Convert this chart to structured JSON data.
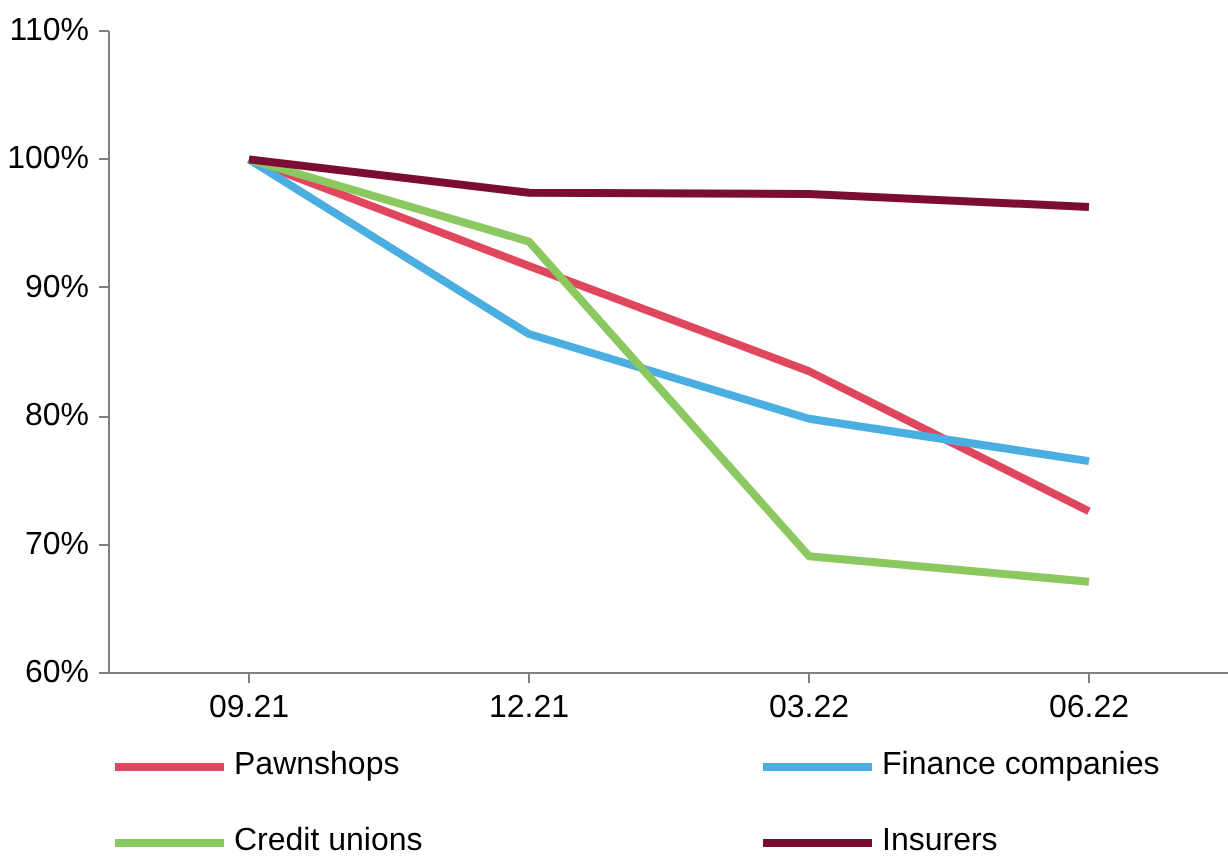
{
  "chart_data": {
    "type": "line",
    "categories": [
      "09.21",
      "12.21",
      "03.22",
      "06.22"
    ],
    "series": [
      {
        "name": "Pawnshops",
        "color": "#e0475e",
        "values": [
          100,
          91.7,
          83.5,
          72.6
        ]
      },
      {
        "name": "Finance companies",
        "color": "#4aaee0",
        "values": [
          100,
          86.4,
          79.8,
          76.5
        ]
      },
      {
        "name": "Credit unions",
        "color": "#8cc860",
        "values": [
          100,
          93.6,
          69.1,
          67.1
        ]
      },
      {
        "name": "Insurers",
        "color": "#7b0c32",
        "values": [
          100,
          97.4,
          97.3,
          96.3
        ]
      }
    ],
    "ylim": [
      60,
      110
    ],
    "yticks": [
      {
        "value": 60,
        "label": "60%"
      },
      {
        "value": 70,
        "label": "70%"
      },
      {
        "value": 80,
        "label": "80%"
      },
      {
        "value": 90,
        "label": "90%"
      },
      {
        "value": 100,
        "label": "100%"
      },
      {
        "value": 110,
        "label": "110%"
      }
    ],
    "grid": false,
    "legend": "bottom",
    "marker": "none",
    "line_style": "solid"
  }
}
